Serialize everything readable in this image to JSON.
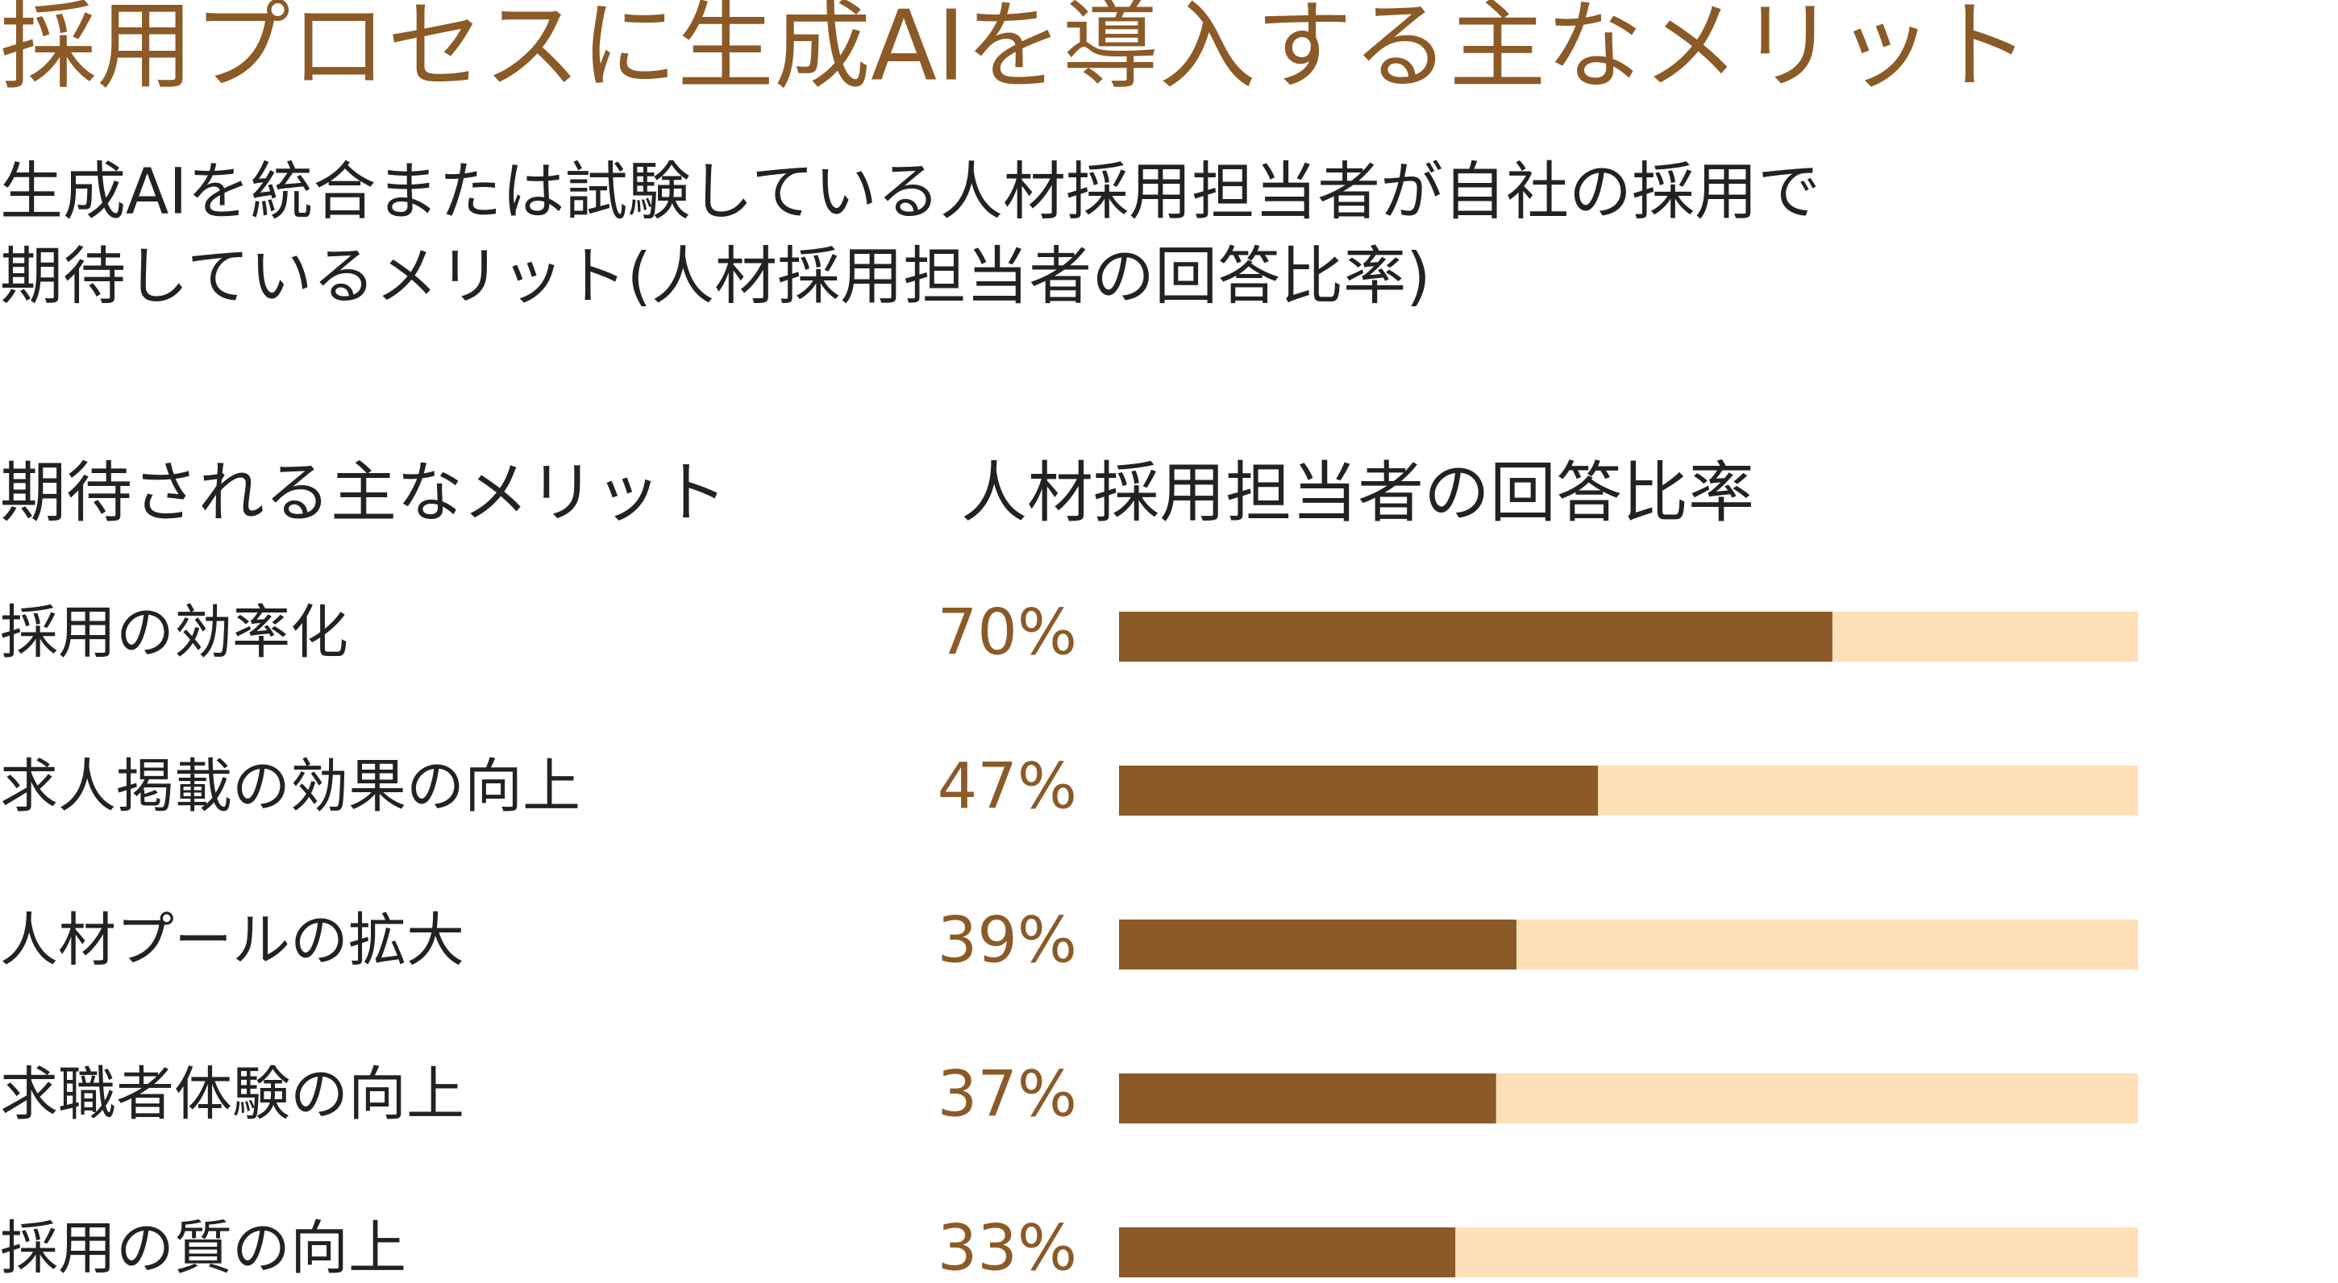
{
  "chart_data": {
    "type": "bar",
    "title": "採用プロセスに生成AIを導入する主なメリット",
    "subtitle": [
      "生成AIを統合または試験している人材採用担当者が自社の採用で",
      "期待しているメリット(人材採用担当者の回答比率)"
    ],
    "category_header": "期待される主なメリット",
    "value_header": "人材採用担当者の回答比率",
    "categories": [
      "採用の効率化",
      "求人掲載の効果の向上",
      "人材プールの拡大",
      "求職者体験の向上",
      "採用の質の向上"
    ],
    "values": [
      70,
      47,
      39,
      37,
      33
    ],
    "value_labels": [
      "70%",
      "47%",
      "39%",
      "37%",
      "33%"
    ],
    "xlim": [
      0,
      100
    ],
    "color": "#8b5a27",
    "track_color": "#ffe0b8",
    "title_color": "#8b5a27",
    "label_color": "#8b5a27"
  }
}
